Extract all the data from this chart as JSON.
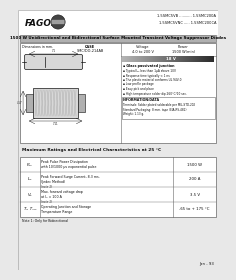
{
  "bg_color": "#e8e8e8",
  "header_bg": "#ffffff",
  "brand": "FAGOR",
  "part_numbers_right": [
    "1.5SMC5VB ........... 1.5SMC200A",
    "1.5SMC5VNC ..... 1.5SMC200CA"
  ],
  "title_bar_text": "1500 W Unidirectional and Bidirectional Surface Mounted Transient Voltage Suppressor Diodes",
  "title_bar_bg": "#b0b0b0",
  "features_title": "Glass passivated junction",
  "features": [
    "Typical I₂₂ less than 1μA above 10V",
    "Response time typically < 1 ns",
    "The plastic material conforms UL 94V-0",
    "Low profile package",
    "Easy pick and place",
    "High temperature solder dip 260°C/10 sec."
  ],
  "info_title": "INFORMATION/DATA",
  "info_text": "Terminals: Solder plated solderable per MIL-STD-202\nStandard Packaging: 8 mm. tape (EIA-RS-481)\nWeight: 1.13 g.",
  "table_title": "Maximum Ratings and Electrical Characteristics at 25 °C",
  "table_rows": [
    {
      "symbol": "Pₚₖ",
      "desc": "Peak Pulse Power Dissipation\nwith 10/1000 μs exponential pulse",
      "note": "",
      "value": "1500 W"
    },
    {
      "symbol": "Iₚₖ",
      "desc": "Peak Forward Surge Current, 8.3 ms.\n(Jedec Method)",
      "note": "(note 1)",
      "value": "200 A"
    },
    {
      "symbol": "Vₑ",
      "desc": "Max. forward voltage drop\nat Iₑ = 100 A",
      "note": "(note 1)",
      "value": "3.5 V"
    },
    {
      "symbol": "Tⱼ, Tₛₜₛ",
      "desc": "Operating Junction and Storage\nTemperature Range",
      "note": "",
      "value": "-65 to + 175 °C"
    }
  ],
  "footnote": "Note 1: Only for Bidirectional",
  "footer_text": "Jan - 93",
  "border_color": "#666666",
  "text_color": "#111111"
}
